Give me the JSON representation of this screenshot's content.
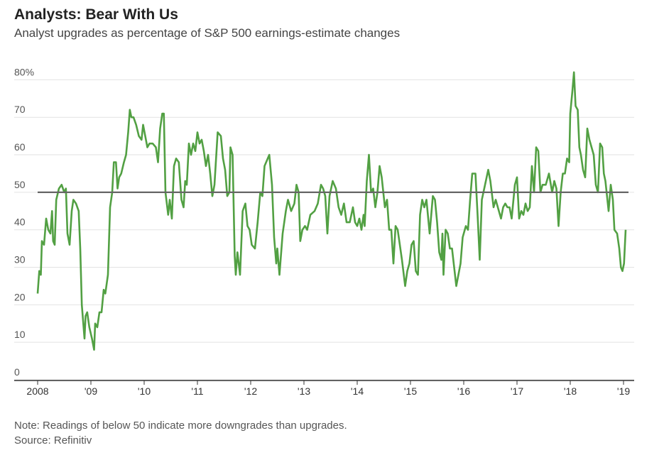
{
  "chart_data": {
    "type": "line",
    "title": "Analysts: Bear With Us",
    "subtitle": "Analyst upgrades as percentage of S&P 500 earnings-estimate changes",
    "notes": [
      "Note: Readings of below 50 indicate more downgrades than upgrades.",
      "Source: Refinitiv"
    ],
    "color": "#52a043",
    "reference_line": 50,
    "reference_color": "#666666",
    "grid": true,
    "xlim": [
      2007.56,
      2019.2
    ],
    "xticks": [
      {
        "value": 2008,
        "label": "2008"
      },
      {
        "value": 2009,
        "label": "'09"
      },
      {
        "value": 2010,
        "label": "'10"
      },
      {
        "value": 2011,
        "label": "'11"
      },
      {
        "value": 2012,
        "label": "'12"
      },
      {
        "value": 2013,
        "label": "'13"
      },
      {
        "value": 2014,
        "label": "'14"
      },
      {
        "value": 2015,
        "label": "'15"
      },
      {
        "value": 2016,
        "label": "'16"
      },
      {
        "value": 2017,
        "label": "'17"
      },
      {
        "value": 2018,
        "label": "'18"
      },
      {
        "value": 2019,
        "label": "'19"
      }
    ],
    "ylim": [
      0,
      85
    ],
    "yticks": [
      0,
      10,
      20,
      30,
      40,
      50,
      60,
      70,
      {
        "value": 80,
        "label": "80%"
      }
    ],
    "x": [
      2008.0,
      2008.03,
      2008.06,
      2008.08,
      2008.12,
      2008.16,
      2008.2,
      2008.24,
      2008.27,
      2008.29,
      2008.32,
      2008.35,
      2008.4,
      2008.45,
      2008.5,
      2008.53,
      2008.56,
      2008.6,
      2008.64,
      2008.67,
      2008.72,
      2008.77,
      2008.8,
      2008.83,
      2008.88,
      2008.9,
      2008.93,
      2008.97,
      2009.02,
      2009.06,
      2009.08,
      2009.12,
      2009.16,
      2009.2,
      2009.24,
      2009.27,
      2009.32,
      2009.36,
      2009.4,
      2009.43,
      2009.47,
      2009.5,
      2009.53,
      2009.57,
      2009.62,
      2009.66,
      2009.7,
      2009.73,
      2009.76,
      2009.8,
      2009.85,
      2009.9,
      2009.95,
      2009.98,
      2010.02,
      2010.06,
      2010.1,
      2010.16,
      2010.22,
      2010.26,
      2010.3,
      2010.34,
      2010.37,
      2010.4,
      2010.45,
      2010.48,
      2010.52,
      2010.56,
      2010.6,
      2010.65,
      2010.7,
      2010.74,
      2010.77,
      2010.8,
      2010.84,
      2010.88,
      2010.92,
      2010.96,
      2011.0,
      2011.04,
      2011.08,
      2011.12,
      2011.16,
      2011.2,
      2011.24,
      2011.28,
      2011.32,
      2011.38,
      2011.44,
      2011.48,
      2011.52,
      2011.56,
      2011.6,
      2011.62,
      2011.66,
      2011.7,
      2011.72,
      2011.75,
      2011.8,
      2011.85,
      2011.9,
      2011.94,
      2011.98,
      2012.02,
      2012.08,
      2012.13,
      2012.18,
      2012.22,
      2012.26,
      2012.32,
      2012.35,
      2012.4,
      2012.44,
      2012.48,
      2012.5,
      2012.54,
      2012.6,
      2012.66,
      2012.7,
      2012.76,
      2012.82,
      2012.86,
      2012.9,
      2012.93,
      2012.97,
      2013.02,
      2013.06,
      2013.12,
      2013.2,
      2013.26,
      2013.32,
      2013.36,
      2013.4,
      2013.44,
      2013.48,
      2013.54,
      2013.6,
      2013.65,
      2013.7,
      2013.75,
      2013.8,
      2013.86,
      2013.92,
      2013.96,
      2014.0,
      2014.04,
      2014.08,
      2014.12,
      2014.14,
      2014.18,
      2014.22,
      2014.26,
      2014.3,
      2014.34,
      2014.38,
      2014.42,
      2014.46,
      2014.52,
      2014.56,
      2014.6,
      2014.64,
      2014.68,
      2014.72,
      2014.76,
      2014.8,
      2014.84,
      2014.9,
      2014.94,
      2014.98,
      2015.02,
      2015.06,
      2015.1,
      2015.14,
      2015.18,
      2015.22,
      2015.26,
      2015.3,
      2015.36,
      2015.42,
      2015.46,
      2015.5,
      2015.54,
      2015.58,
      2015.6,
      2015.62,
      2015.66,
      2015.7,
      2015.74,
      2015.78,
      2015.82,
      2015.86,
      2015.9,
      2015.94,
      2015.98,
      2016.04,
      2016.08,
      2016.12,
      2016.16,
      2016.22,
      2016.26,
      2016.3,
      2016.34,
      2016.4,
      2016.46,
      2016.5,
      2016.56,
      2016.6,
      2016.66,
      2016.7,
      2016.74,
      2016.78,
      2016.82,
      2016.86,
      2016.9,
      2016.96,
      2017.0,
      2017.04,
      2017.08,
      2017.12,
      2017.16,
      2017.2,
      2017.24,
      2017.28,
      2017.32,
      2017.36,
      2017.4,
      2017.44,
      2017.48,
      2017.54,
      2017.6,
      2017.66,
      2017.7,
      2017.74,
      2017.78,
      2017.82,
      2017.86,
      2017.9,
      2017.94,
      2017.98,
      2018.0,
      2018.04,
      2018.07,
      2018.1,
      2018.14,
      2018.17,
      2018.2,
      2018.24,
      2018.28,
      2018.32,
      2018.36,
      2018.4,
      2018.44,
      2018.48,
      2018.52,
      2018.56,
      2018.6,
      2018.63,
      2018.66,
      2018.72,
      2018.76,
      2018.8,
      2018.83,
      2018.88,
      2018.92,
      2018.95,
      2018.98,
      2019.01,
      2019.04
    ],
    "values": [
      23,
      29,
      28,
      37,
      36,
      43,
      40,
      39,
      45,
      37,
      36,
      48,
      51,
      52,
      50,
      51,
      39,
      36,
      45,
      48,
      47,
      45,
      35,
      20,
      11,
      17,
      18,
      14,
      11,
      8,
      15,
      14,
      18,
      18,
      24,
      23,
      28,
      46,
      50,
      58,
      58,
      51,
      54,
      55,
      58,
      60,
      66,
      72,
      70,
      70,
      68,
      65,
      64,
      68,
      65,
      62,
      63,
      63,
      62,
      58,
      67,
      71,
      71,
      50,
      44,
      48,
      43,
      57,
      59,
      58,
      48,
      46,
      53,
      52,
      63,
      60,
      63,
      61,
      66,
      63,
      64,
      61,
      57,
      60,
      55,
      49,
      52,
      66,
      65,
      59,
      56,
      49,
      50,
      62,
      60,
      33,
      28,
      34,
      28,
      45,
      47,
      41,
      40,
      36,
      35,
      42,
      50,
      49,
      57,
      59,
      60,
      52,
      38,
      31,
      35,
      28,
      39,
      45,
      48,
      45,
      47,
      52,
      50,
      37,
      40,
      41,
      40,
      44,
      45,
      47,
      52,
      51,
      49,
      39,
      49,
      53,
      51,
      46,
      44,
      47,
      42,
      42,
      46,
      42,
      41,
      43,
      40,
      44,
      41,
      53,
      60,
      50,
      51,
      46,
      50,
      57,
      54,
      46,
      48,
      40,
      40,
      31,
      41,
      40,
      36,
      32,
      25,
      29,
      31,
      36,
      37,
      29,
      28,
      44,
      48,
      46,
      48,
      39,
      49,
      48,
      42,
      34,
      32,
      39,
      28,
      40,
      39,
      35,
      35,
      30,
      25,
      28,
      31,
      38,
      41,
      40,
      48,
      55,
      55,
      44,
      32,
      48,
      52,
      56,
      53,
      46,
      48,
      45,
      43,
      46,
      47,
      46,
      46,
      43,
      52,
      54,
      43,
      45,
      44,
      47,
      45,
      46,
      57,
      50,
      62,
      61,
      50,
      52,
      52,
      55,
      50,
      53,
      51,
      41,
      50,
      55,
      55,
      59,
      58,
      71,
      77,
      82,
      73,
      72,
      62,
      60,
      56,
      54,
      67,
      64,
      62,
      60,
      52,
      50,
      63,
      62,
      55,
      53,
      45,
      52,
      48,
      40,
      39,
      35,
      30,
      29,
      31,
      40
    ]
  }
}
